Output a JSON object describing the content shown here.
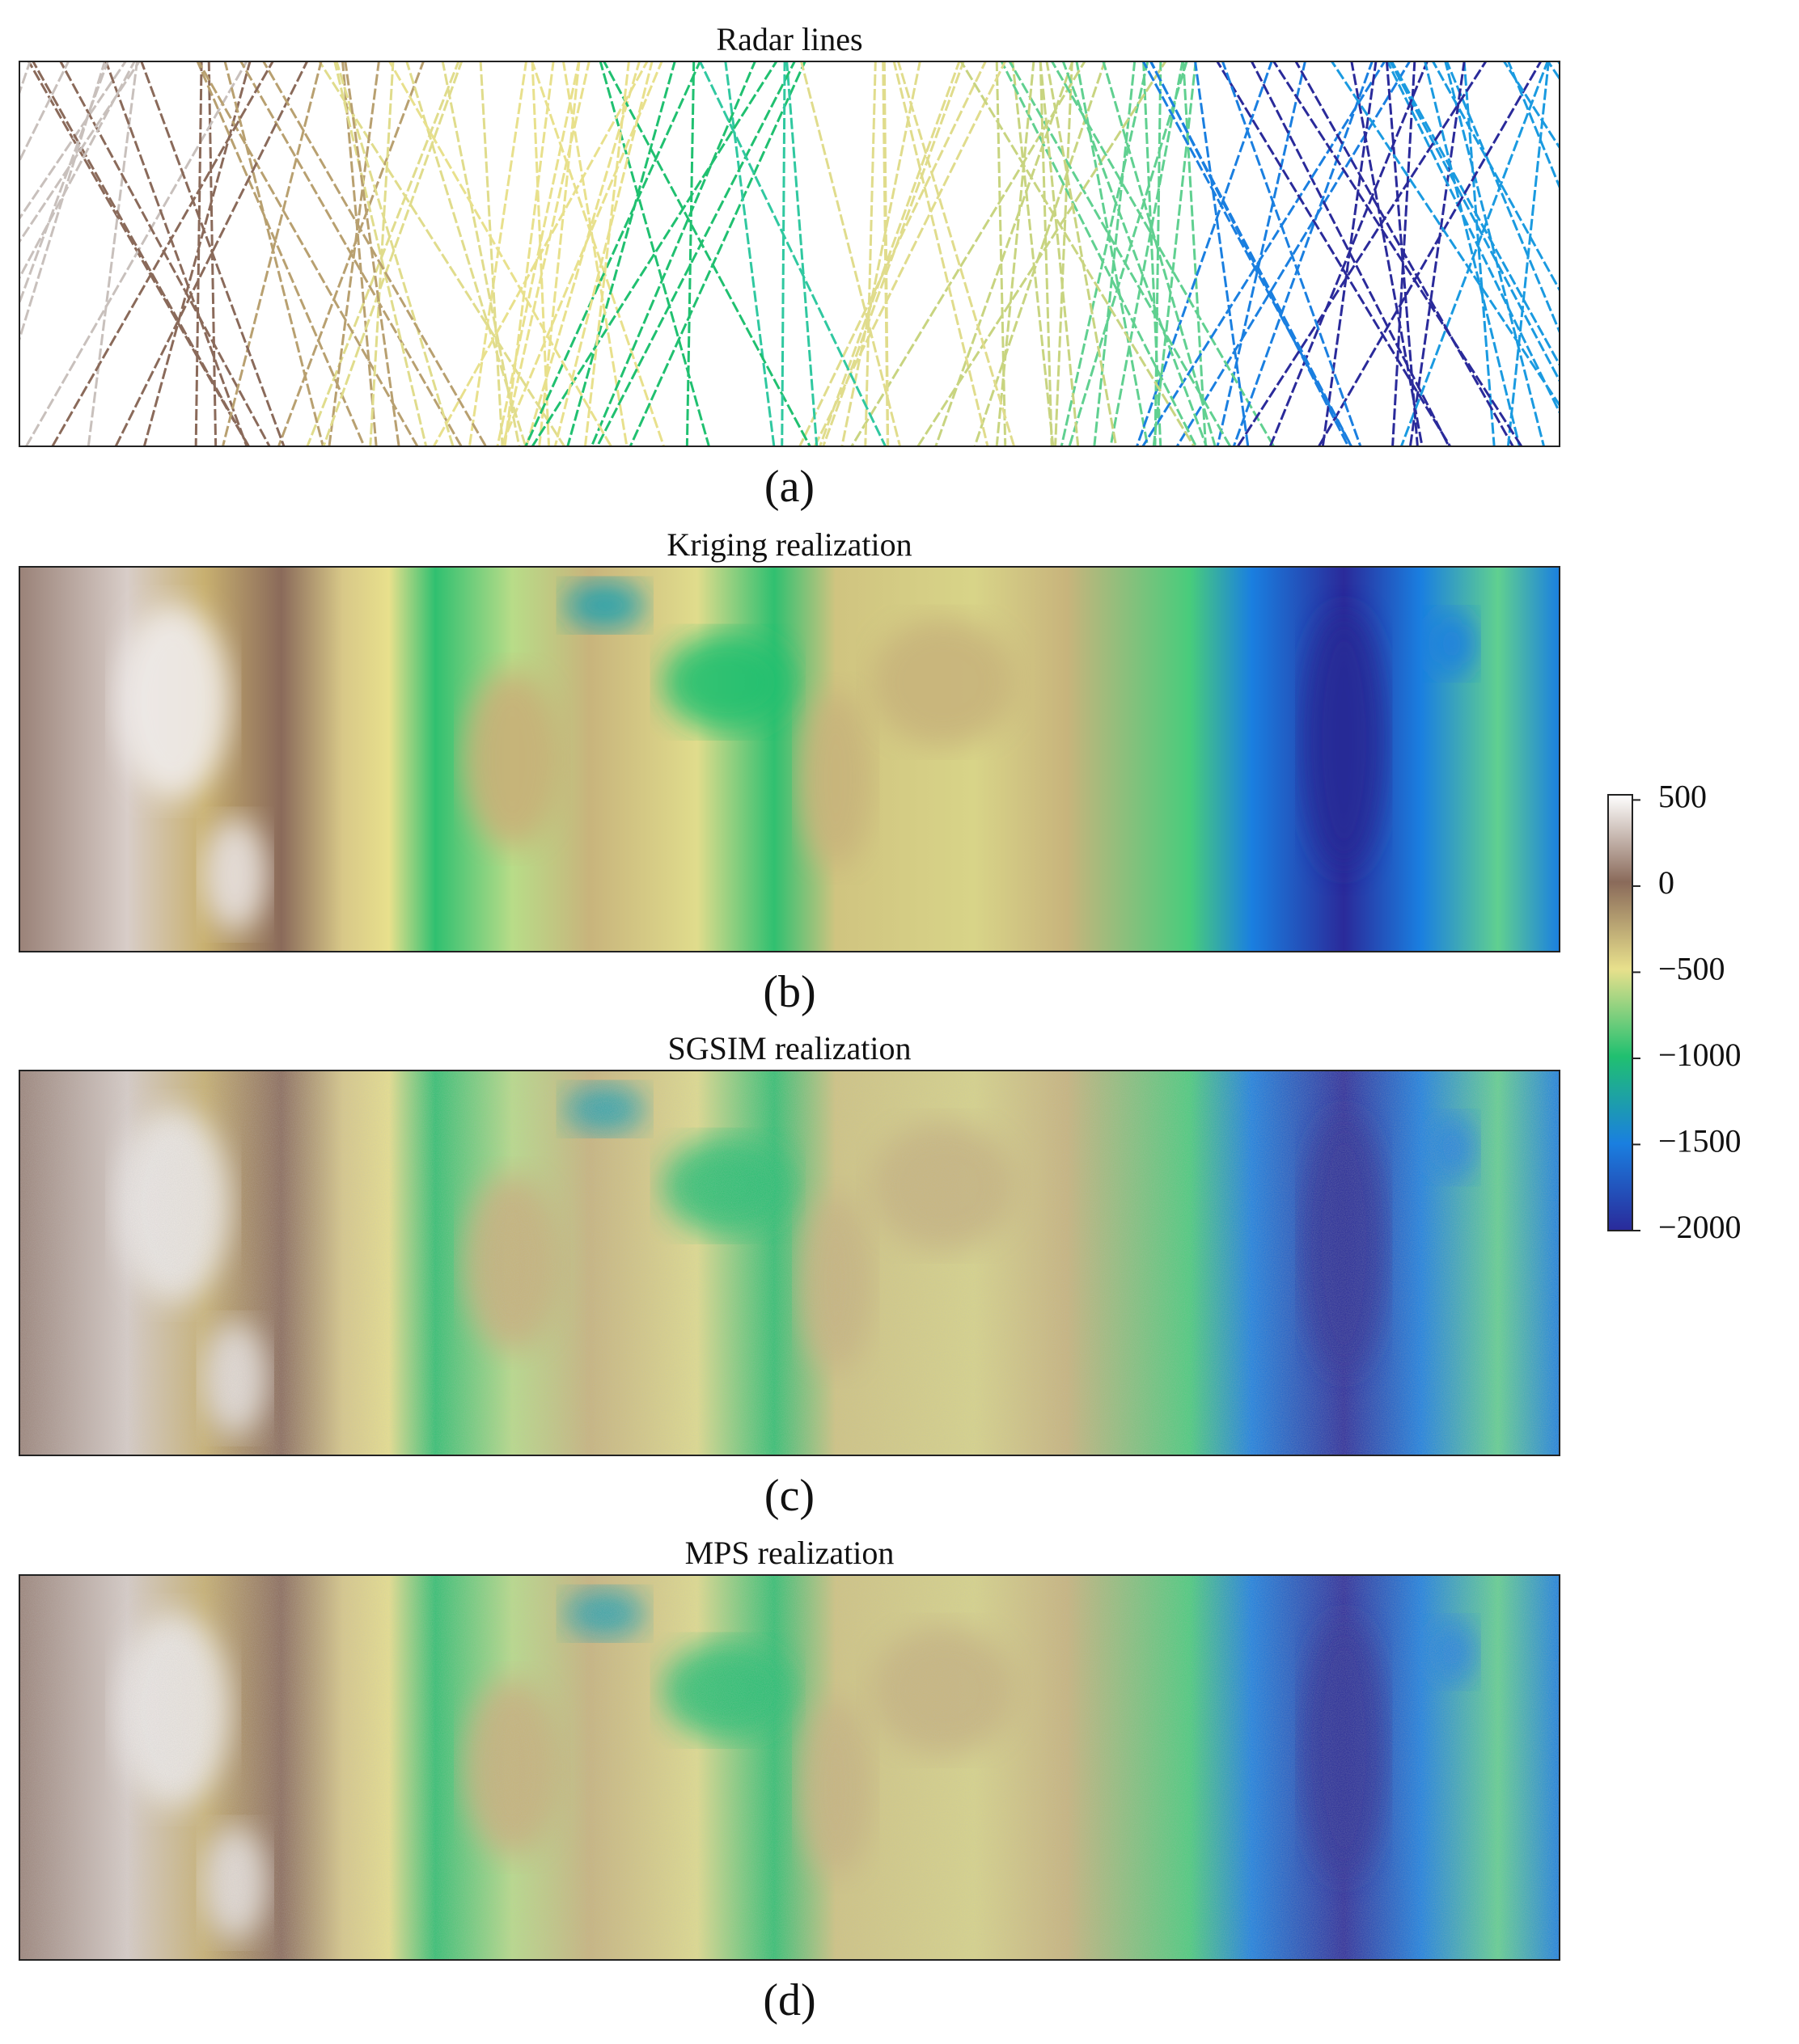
{
  "chart_data": [
    {
      "type": "heatmap",
      "title": "Radar lines",
      "caption": "(a)",
      "style": "lines"
    },
    {
      "type": "heatmap",
      "title": "Kriging realization",
      "caption": "(b)",
      "style": "smooth"
    },
    {
      "type": "heatmap",
      "title": "SGSIM realization",
      "caption": "(c)",
      "style": "noisy"
    },
    {
      "type": "heatmap",
      "title": "MPS realization",
      "caption": "(d)",
      "style": "noisy"
    }
  ],
  "colorbar": {
    "lim": [
      -2000,
      530
    ],
    "ticks": [
      500,
      0,
      {
        "value": -500,
        "label": "−500"
      },
      {
        "value": -1000,
        "label": "−1000"
      },
      {
        "value": -1500,
        "label": "−1500"
      },
      {
        "value": -2000,
        "label": "−2000"
      }
    ],
    "colors": [
      "#2a2a9a",
      "#1a7fe0",
      "#20c070",
      "#e8e08c",
      "#8a6a5a",
      "#ffffff"
    ]
  }
}
